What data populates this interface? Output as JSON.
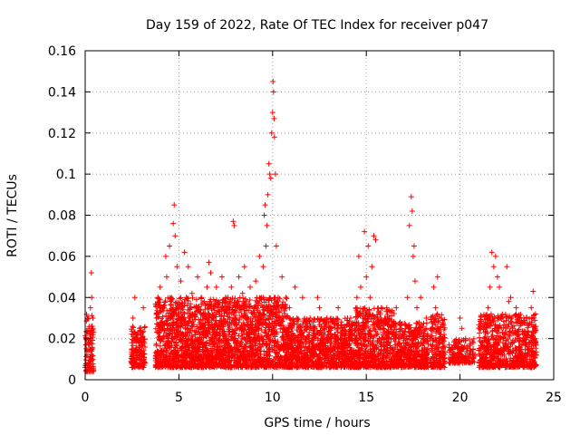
{
  "chart_data": {
    "type": "scatter",
    "title": "Day 159 of 2022, Rate Of TEC Index for receiver p047",
    "xlabel": "GPS time / hours",
    "ylabel": "ROTI / TECUs",
    "xlim": [
      0,
      25
    ],
    "ylim": [
      0,
      0.16
    ],
    "xticks": [
      0,
      5,
      10,
      15,
      20,
      25
    ],
    "xtick_labels": [
      "0",
      "5",
      "10",
      "15",
      "20",
      "25"
    ],
    "yticks": [
      0,
      0.02,
      0.04,
      0.06,
      0.08,
      0.1,
      0.12,
      0.14,
      0.16
    ],
    "ytick_labels": [
      "0",
      "0.02",
      "0.04",
      "0.06",
      "0.08",
      "0.1",
      "0.12",
      "0.14",
      "0.16"
    ],
    "grid": true,
    "marker": "+",
    "marker_color": "#ff0000",
    "series": [
      {
        "name": "ROTI",
        "points": [
          [
            0.0,
            0.006
          ],
          [
            0.05,
            0.02
          ],
          [
            0.1,
            0.012
          ],
          [
            0.12,
            0.03
          ],
          [
            0.15,
            0.008
          ],
          [
            0.2,
            0.025
          ],
          [
            0.25,
            0.015
          ],
          [
            0.28,
            0.035
          ],
          [
            0.3,
            0.018
          ],
          [
            0.33,
            0.052
          ],
          [
            0.35,
            0.04
          ],
          [
            0.38,
            0.026
          ],
          [
            0.4,
            0.01
          ],
          [
            0.42,
            0.022
          ],
          [
            2.5,
            0.015
          ],
          [
            2.55,
            0.03
          ],
          [
            2.6,
            0.01
          ],
          [
            2.65,
            0.04
          ],
          [
            2.7,
            0.02
          ],
          [
            2.8,
            0.012
          ],
          [
            2.9,
            0.025
          ],
          [
            3.0,
            0.018
          ],
          [
            3.1,
            0.035
          ],
          [
            3.15,
            0.01
          ],
          [
            3.8,
            0.03
          ],
          [
            3.9,
            0.012
          ],
          [
            4.0,
            0.045
          ],
          [
            4.1,
            0.02
          ],
          [
            4.2,
            0.035
          ],
          [
            4.3,
            0.06
          ],
          [
            4.35,
            0.05
          ],
          [
            4.4,
            0.025
          ],
          [
            4.5,
            0.065
          ],
          [
            4.6,
            0.04
          ],
          [
            4.7,
            0.076
          ],
          [
            4.75,
            0.085
          ],
          [
            4.8,
            0.07
          ],
          [
            4.9,
            0.055
          ],
          [
            5.0,
            0.03
          ],
          [
            5.1,
            0.048
          ],
          [
            5.2,
            0.02
          ],
          [
            5.3,
            0.062
          ],
          [
            5.4,
            0.04
          ],
          [
            5.5,
            0.055
          ],
          [
            5.6,
            0.025
          ],
          [
            5.7,
            0.042
          ],
          [
            5.8,
            0.015
          ],
          [
            5.9,
            0.035
          ],
          [
            6.0,
            0.05
          ],
          [
            6.1,
            0.022
          ],
          [
            6.2,
            0.04
          ],
          [
            6.3,
            0.018
          ],
          [
            6.4,
            0.03
          ],
          [
            6.5,
            0.045
          ],
          [
            6.6,
            0.057
          ],
          [
            6.7,
            0.052
          ],
          [
            6.8,
            0.03
          ],
          [
            6.9,
            0.02
          ],
          [
            7.0,
            0.045
          ],
          [
            7.1,
            0.035
          ],
          [
            7.2,
            0.025
          ],
          [
            7.3,
            0.05
          ],
          [
            7.4,
            0.015
          ],
          [
            7.5,
            0.04
          ],
          [
            7.6,
            0.028
          ],
          [
            7.7,
            0.038
          ],
          [
            7.8,
            0.045
          ],
          [
            7.9,
            0.077
          ],
          [
            7.95,
            0.075
          ],
          [
            8.0,
            0.02
          ],
          [
            8.1,
            0.035
          ],
          [
            8.2,
            0.05
          ],
          [
            8.3,
            0.025
          ],
          [
            8.4,
            0.042
          ],
          [
            8.5,
            0.055
          ],
          [
            8.6,
            0.03
          ],
          [
            8.7,
            0.02
          ],
          [
            8.8,
            0.045
          ],
          [
            8.9,
            0.015
          ],
          [
            9.0,
            0.035
          ],
          [
            9.1,
            0.048
          ],
          [
            9.2,
            0.02
          ],
          [
            9.3,
            0.06
          ],
          [
            9.4,
            0.04
          ],
          [
            9.5,
            0.055
          ],
          [
            9.55,
            0.08
          ],
          [
            9.6,
            0.085
          ],
          [
            9.65,
            0.065
          ],
          [
            9.7,
            0.075
          ],
          [
            9.75,
            0.09
          ],
          [
            9.8,
            0.105
          ],
          [
            9.85,
            0.1
          ],
          [
            9.9,
            0.098
          ],
          [
            9.95,
            0.12
          ],
          [
            10.0,
            0.13
          ],
          [
            10.02,
            0.145
          ],
          [
            10.05,
            0.14
          ],
          [
            10.08,
            0.127
          ],
          [
            10.1,
            0.118
          ],
          [
            10.15,
            0.1
          ],
          [
            10.2,
            0.065
          ],
          [
            10.3,
            0.04
          ],
          [
            10.4,
            0.03
          ],
          [
            10.5,
            0.05
          ],
          [
            10.6,
            0.025
          ],
          [
            10.7,
            0.04
          ],
          [
            10.8,
            0.015
          ],
          [
            10.9,
            0.035
          ],
          [
            11.0,
            0.02
          ],
          [
            11.2,
            0.045
          ],
          [
            11.3,
            0.03
          ],
          [
            11.5,
            0.022
          ],
          [
            11.6,
            0.04
          ],
          [
            11.8,
            0.018
          ],
          [
            12.0,
            0.03
          ],
          [
            12.2,
            0.025
          ],
          [
            12.4,
            0.04
          ],
          [
            12.5,
            0.035
          ],
          [
            12.7,
            0.02
          ],
          [
            12.9,
            0.03
          ],
          [
            13.0,
            0.015
          ],
          [
            13.2,
            0.028
          ],
          [
            13.4,
            0.02
          ],
          [
            13.5,
            0.035
          ],
          [
            13.7,
            0.025
          ],
          [
            13.9,
            0.018
          ],
          [
            14.0,
            0.03
          ],
          [
            14.2,
            0.022
          ],
          [
            14.4,
            0.028
          ],
          [
            14.5,
            0.04
          ],
          [
            14.6,
            0.06
          ],
          [
            14.7,
            0.045
          ],
          [
            14.8,
            0.03
          ],
          [
            14.9,
            0.072
          ],
          [
            15.0,
            0.05
          ],
          [
            15.1,
            0.065
          ],
          [
            15.2,
            0.04
          ],
          [
            15.3,
            0.055
          ],
          [
            15.4,
            0.07
          ],
          [
            15.5,
            0.068
          ],
          [
            15.6,
            0.03
          ],
          [
            15.7,
            0.02
          ],
          [
            15.8,
            0.035
          ],
          [
            15.9,
            0.025
          ],
          [
            16.0,
            0.03
          ],
          [
            16.2,
            0.02
          ],
          [
            16.4,
            0.015
          ],
          [
            16.6,
            0.035
          ],
          [
            16.8,
            0.025
          ],
          [
            17.0,
            0.018
          ],
          [
            17.2,
            0.04
          ],
          [
            17.3,
            0.075
          ],
          [
            17.4,
            0.089
          ],
          [
            17.45,
            0.082
          ],
          [
            17.5,
            0.06
          ],
          [
            17.55,
            0.065
          ],
          [
            17.6,
            0.048
          ],
          [
            17.7,
            0.035
          ],
          [
            17.8,
            0.025
          ],
          [
            17.9,
            0.04
          ],
          [
            18.0,
            0.02
          ],
          [
            18.1,
            0.015
          ],
          [
            18.2,
            0.03
          ],
          [
            18.5,
            0.025
          ],
          [
            18.6,
            0.045
          ],
          [
            18.7,
            0.035
          ],
          [
            18.8,
            0.05
          ],
          [
            18.9,
            0.02
          ],
          [
            19.0,
            0.03
          ],
          [
            19.1,
            0.015
          ],
          [
            19.5,
            0.015
          ],
          [
            19.6,
            0.012
          ],
          [
            19.8,
            0.018
          ],
          [
            20.0,
            0.03
          ],
          [
            20.1,
            0.025
          ],
          [
            20.2,
            0.015
          ],
          [
            20.3,
            0.02
          ],
          [
            20.5,
            0.012
          ],
          [
            20.7,
            0.018
          ],
          [
            21.0,
            0.025
          ],
          [
            21.3,
            0.02
          ],
          [
            21.5,
            0.035
          ],
          [
            21.6,
            0.045
          ],
          [
            21.7,
            0.062
          ],
          [
            21.8,
            0.055
          ],
          [
            21.9,
            0.06
          ],
          [
            22.0,
            0.05
          ],
          [
            22.1,
            0.045
          ],
          [
            22.2,
            0.03
          ],
          [
            22.3,
            0.02
          ],
          [
            22.5,
            0.055
          ],
          [
            22.6,
            0.038
          ],
          [
            22.7,
            0.04
          ],
          [
            22.8,
            0.025
          ],
          [
            23.0,
            0.035
          ],
          [
            23.2,
            0.02
          ],
          [
            23.4,
            0.03
          ],
          [
            23.6,
            0.015
          ],
          [
            23.8,
            0.035
          ],
          [
            23.9,
            0.043
          ],
          [
            24.0,
            0.02
          ]
        ],
        "bands": [
          {
            "x": [
              0.0,
              0.45
            ],
            "y": [
              0.004,
              0.032
            ],
            "n": 90
          },
          {
            "x": [
              2.45,
              3.2
            ],
            "y": [
              0.006,
              0.026
            ],
            "n": 160
          },
          {
            "x": [
              3.75,
              10.8
            ],
            "y": [
              0.006,
              0.04
            ],
            "n": 2100
          },
          {
            "x": [
              10.8,
              14.4
            ],
            "y": [
              0.006,
              0.03
            ],
            "n": 900
          },
          {
            "x": [
              14.4,
              16.5
            ],
            "y": [
              0.006,
              0.035
            ],
            "n": 550
          },
          {
            "x": [
              16.5,
              18.3
            ],
            "y": [
              0.006,
              0.028
            ],
            "n": 420
          },
          {
            "x": [
              18.4,
              19.2
            ],
            "y": [
              0.006,
              0.032
            ],
            "n": 170
          },
          {
            "x": [
              19.4,
              20.8
            ],
            "y": [
              0.008,
              0.02
            ],
            "n": 140
          },
          {
            "x": [
              21.0,
              24.1
            ],
            "y": [
              0.006,
              0.032
            ],
            "n": 700
          }
        ]
      }
    ]
  }
}
